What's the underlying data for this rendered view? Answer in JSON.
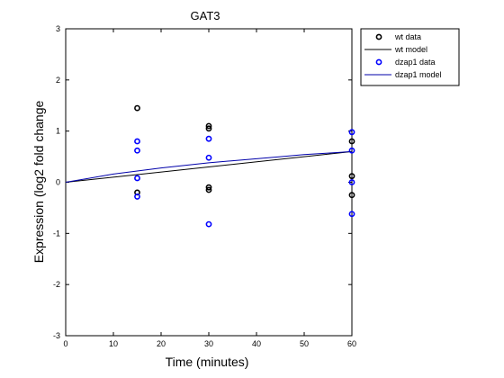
{
  "chart_data": {
    "type": "scatter",
    "title": "GAT3",
    "xlabel": "Time (minutes)",
    "ylabel": "Expression (log2 fold change",
    "xlim": [
      0,
      60
    ],
    "ylim": [
      -3,
      3
    ],
    "xticks": [
      0,
      10,
      20,
      30,
      40,
      50,
      60
    ],
    "yticks": [
      -3,
      -2,
      -1,
      0,
      1,
      2,
      3
    ],
    "legend_position": "top-right",
    "series": [
      {
        "name": "wt data",
        "kind": "markers",
        "color": "#000000",
        "points": [
          [
            15,
            1.45
          ],
          [
            15,
            -0.2
          ],
          [
            30,
            1.1
          ],
          [
            30,
            1.05
          ],
          [
            30,
            -0.1
          ],
          [
            30,
            -0.15
          ],
          [
            60,
            0.8
          ],
          [
            60,
            0.12
          ],
          [
            60,
            -0.25
          ]
        ]
      },
      {
        "name": "wt model",
        "kind": "line",
        "color": "#000000",
        "points": [
          [
            0,
            0
          ],
          [
            60,
            0.6
          ]
        ]
      },
      {
        "name": "dzap1 data",
        "kind": "markers",
        "color": "#0000ff",
        "points": [
          [
            15,
            0.8
          ],
          [
            15,
            0.62
          ],
          [
            15,
            0.08
          ],
          [
            15,
            -0.28
          ],
          [
            30,
            0.85
          ],
          [
            30,
            0.48
          ],
          [
            30,
            -0.82
          ],
          [
            60,
            0.98
          ],
          [
            60,
            0.62
          ],
          [
            60,
            0.0
          ],
          [
            60,
            -0.62
          ]
        ]
      },
      {
        "name": "dzap1 model",
        "kind": "line",
        "color": "#0000aa",
        "points": [
          [
            0,
            0
          ],
          [
            5,
            0.08
          ],
          [
            10,
            0.16
          ],
          [
            15,
            0.22
          ],
          [
            20,
            0.28
          ],
          [
            25,
            0.33
          ],
          [
            30,
            0.38
          ],
          [
            35,
            0.42
          ],
          [
            40,
            0.46
          ],
          [
            45,
            0.5
          ],
          [
            50,
            0.54
          ],
          [
            55,
            0.57
          ],
          [
            60,
            0.6
          ]
        ]
      }
    ]
  }
}
